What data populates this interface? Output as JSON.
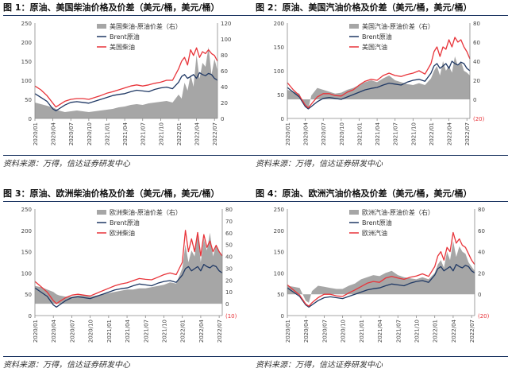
{
  "colors": {
    "spread": "#a6a6a6",
    "brent": "#1f3864",
    "product": "#e8343a",
    "negative_label": "#e8343a",
    "rule": "#1f3864"
  },
  "x_ticks": [
    "2020/01",
    "2020/04",
    "2020/07",
    "2020/10",
    "2021/01",
    "2021/04",
    "2021/07",
    "2021/10",
    "2022/01",
    "2022/04",
    "2022/07"
  ],
  "chart_data": [
    {
      "type": "area",
      "title": "图 1：原油、美国柴油价格及价差（美元/桶，美元/桶）",
      "source": "资料来源：万得，信达证券研发中心",
      "ylim_left": [
        0,
        250
      ],
      "yticks_left": [
        "0",
        "50",
        "100",
        "150",
        "200",
        "250"
      ],
      "ylim_right": [
        0,
        120
      ],
      "yticks_right": [
        "0",
        "20",
        "40",
        "60",
        "80",
        "100",
        "120"
      ],
      "legend": [
        "美国柴油-原油价差（右）",
        "Brent原油",
        "美国柴油"
      ],
      "x": [
        0,
        1,
        2,
        3,
        3.5,
        4,
        5,
        6,
        7,
        8,
        9,
        10,
        11,
        12,
        13,
        14,
        15,
        16,
        17,
        18,
        19,
        20,
        21,
        22,
        23,
        24,
        24.5,
        25,
        25.5,
        26,
        26.5,
        27,
        27.5,
        28,
        28.5,
        29,
        29.5,
        30,
        30.5
      ],
      "spread": [
        20,
        18,
        16,
        14,
        12,
        10,
        8,
        9,
        10,
        9,
        8,
        9,
        10,
        11,
        12,
        14,
        15,
        17,
        18,
        17,
        19,
        20,
        21,
        22,
        20,
        30,
        25,
        45,
        35,
        55,
        40,
        80,
        50,
        70,
        65,
        90,
        55,
        75,
        60
      ],
      "brent": [
        65,
        55,
        45,
        25,
        20,
        25,
        35,
        42,
        44,
        42,
        40,
        45,
        50,
        55,
        60,
        63,
        65,
        70,
        74,
        72,
        70,
        76,
        80,
        82,
        78,
        95,
        110,
        115,
        105,
        110,
        115,
        105,
        120,
        115,
        112,
        118,
        115,
        105,
        100
      ],
      "product": [
        85,
        75,
        60,
        40,
        30,
        35,
        45,
        50,
        52,
        52,
        50,
        55,
        60,
        66,
        70,
        75,
        80,
        85,
        88,
        85,
        88,
        92,
        95,
        100,
        100,
        130,
        150,
        160,
        140,
        180,
        165,
        185,
        160,
        175,
        170,
        180,
        170,
        165,
        150
      ]
    },
    {
      "type": "area",
      "title": "图 2：原油、美国汽油价格及价差（美元/桶，美元/桶）",
      "source": "资料来源：万得，信达证券研发中心",
      "ylim_left": [
        0,
        200
      ],
      "yticks_left": [
        "0",
        "50",
        "100",
        "150",
        "200"
      ],
      "ylim_right": [
        -20,
        80
      ],
      "yticks_right": [
        "(20)",
        "0",
        "20",
        "40",
        "60",
        "80"
      ],
      "negative_label_value": "(20)",
      "legend": [
        "美国汽油-原油价差（右）",
        "Brent原油",
        "美国汽油"
      ],
      "x": [
        0,
        1,
        2,
        3,
        3.5,
        4,
        5,
        6,
        7,
        8,
        9,
        10,
        11,
        12,
        13,
        14,
        15,
        16,
        17,
        18,
        19,
        20,
        21,
        22,
        23,
        24,
        24.5,
        25,
        25.5,
        26,
        26.5,
        27,
        27.5,
        28,
        28.5,
        29,
        29.5,
        30,
        30.5
      ],
      "spread": [
        10,
        8,
        6,
        -8,
        -10,
        4,
        12,
        10,
        8,
        6,
        7,
        10,
        12,
        15,
        18,
        20,
        18,
        22,
        25,
        20,
        18,
        16,
        15,
        17,
        15,
        22,
        30,
        35,
        25,
        40,
        30,
        35,
        28,
        45,
        35,
        40,
        30,
        28,
        25
      ],
      "brent": [
        65,
        55,
        45,
        25,
        20,
        25,
        35,
        42,
        44,
        42,
        40,
        45,
        50,
        55,
        60,
        63,
        65,
        70,
        74,
        72,
        70,
        76,
        80,
        82,
        78,
        95,
        110,
        115,
        105,
        110,
        115,
        105,
        120,
        115,
        112,
        118,
        115,
        105,
        100
      ],
      "product": [
        75,
        60,
        48,
        28,
        22,
        30,
        45,
        52,
        52,
        48,
        47,
        55,
        60,
        70,
        78,
        82,
        80,
        90,
        95,
        90,
        88,
        92,
        95,
        100,
        93,
        115,
        140,
        150,
        130,
        150,
        145,
        165,
        150,
        170,
        160,
        165,
        150,
        140,
        125
      ]
    },
    {
      "type": "area",
      "title": "图 3：原油、欧洲柴油价格及价差（美元/桶，美元/桶）",
      "source": "资料来源：万得，信达证券研发中心",
      "ylim_left": [
        0,
        250
      ],
      "yticks_left": [
        "0",
        "50",
        "100",
        "150",
        "200",
        "250"
      ],
      "ylim_right": [
        -10,
        80
      ],
      "yticks_right": [
        "(10)",
        "0",
        "10",
        "20",
        "30",
        "40",
        "50",
        "60",
        "70",
        "80"
      ],
      "negative_label_value": "(10)",
      "legend": [
        "欧洲柴油-原油价差（右）",
        "Brent原油",
        "欧洲柴油"
      ],
      "x": [
        0,
        1,
        2,
        3,
        3.5,
        4,
        5,
        6,
        7,
        8,
        9,
        10,
        11,
        12,
        13,
        14,
        15,
        16,
        17,
        18,
        19,
        20,
        21,
        22,
        23,
        24,
        24.5,
        25,
        25.5,
        26,
        26.5,
        27,
        27.5,
        28,
        28.5,
        29,
        29.5,
        30,
        30.5
      ],
      "spread": [
        15,
        14,
        12,
        10,
        8,
        7,
        6,
        6,
        7,
        7,
        6,
        7,
        8,
        9,
        10,
        11,
        12,
        12,
        13,
        13,
        14,
        15,
        16,
        18,
        17,
        30,
        50,
        35,
        45,
        40,
        60,
        35,
        55,
        45,
        60,
        40,
        50,
        45,
        40
      ],
      "brent": [
        65,
        55,
        45,
        25,
        20,
        25,
        35,
        42,
        44,
        42,
        40,
        45,
        50,
        55,
        60,
        63,
        65,
        70,
        74,
        72,
        70,
        76,
        80,
        82,
        78,
        95,
        110,
        115,
        105,
        110,
        115,
        105,
        120,
        115,
        112,
        118,
        115,
        105,
        100
      ],
      "product": [
        80,
        68,
        55,
        35,
        28,
        33,
        42,
        48,
        50,
        48,
        46,
        52,
        58,
        64,
        70,
        74,
        77,
        82,
        87,
        85,
        84,
        90,
        96,
        100,
        96,
        125,
        200,
        150,
        180,
        150,
        195,
        140,
        190,
        160,
        175,
        150,
        165,
        150,
        140
      ]
    },
    {
      "type": "area",
      "title": "图 4：原油、欧洲汽油价格及价差（美元/桶，美元/桶）",
      "source": "资料来源：万得，信达证券研发中心",
      "ylim_left": [
        0,
        250
      ],
      "yticks_left": [
        "0",
        "50",
        "100",
        "150",
        "200",
        "250"
      ],
      "ylim_right": [
        -20,
        80
      ],
      "yticks_right": [
        "(20)",
        "0",
        "20",
        "40",
        "60",
        "80"
      ],
      "negative_label_value": "(20)",
      "legend": [
        "欧洲汽油-原油价差（右）",
        "Brent原油",
        "欧洲汽油"
      ],
      "x": [
        0,
        1,
        2,
        3,
        3.5,
        4,
        5,
        6,
        7,
        8,
        9,
        10,
        11,
        12,
        13,
        14,
        15,
        16,
        17,
        18,
        19,
        20,
        21,
        22,
        23,
        24,
        24.5,
        25,
        25.5,
        26,
        26.5,
        27,
        27.5,
        28,
        28.5,
        29,
        29.5,
        30,
        30.5
      ],
      "spread": [
        8,
        7,
        6,
        -6,
        -8,
        3,
        8,
        7,
        6,
        5,
        5,
        8,
        10,
        14,
        16,
        18,
        17,
        20,
        22,
        18,
        16,
        15,
        14,
        16,
        14,
        20,
        28,
        32,
        25,
        40,
        32,
        50,
        35,
        45,
        40,
        38,
        30,
        26,
        22
      ],
      "brent": [
        65,
        55,
        45,
        25,
        20,
        25,
        35,
        42,
        44,
        42,
        40,
        45,
        50,
        55,
        60,
        63,
        65,
        70,
        74,
        72,
        70,
        76,
        80,
        82,
        78,
        95,
        110,
        115,
        105,
        110,
        115,
        105,
        120,
        115,
        112,
        118,
        115,
        105,
        100
      ],
      "product": [
        72,
        60,
        48,
        27,
        22,
        30,
        42,
        50,
        50,
        46,
        45,
        53,
        60,
        68,
        76,
        80,
        78,
        88,
        92,
        88,
        85,
        90,
        93,
        98,
        92,
        115,
        140,
        150,
        130,
        160,
        150,
        195,
        170,
        180,
        165,
        160,
        145,
        130,
        120
      ]
    }
  ]
}
